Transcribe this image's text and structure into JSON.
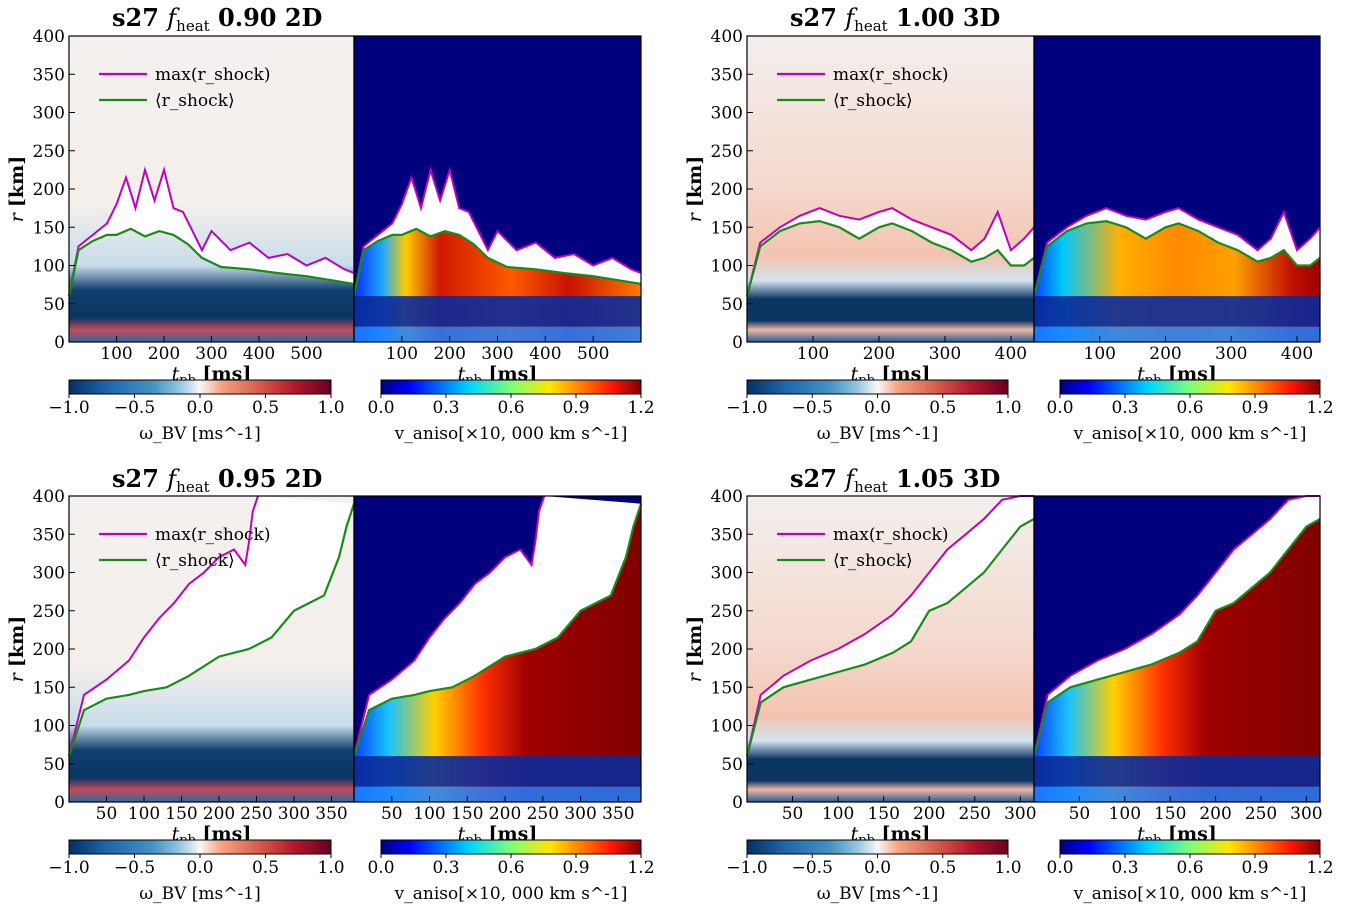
{
  "chart_data": [
    {
      "type": "heatmap",
      "panel": "top-left",
      "title": "s27 f_heat 0.90 2D",
      "title_parts": {
        "model": "s27",
        "f": "f",
        "sub": "heat",
        "rest": "0.90 2D"
      },
      "ylabel": "r [km]",
      "xlabel": "t_pb [ms]",
      "ylim": [
        0,
        400
      ],
      "xlim": [
        0,
        600
      ],
      "yticks": [
        "0",
        "50",
        "100",
        "150",
        "200",
        "250",
        "300",
        "350",
        "400"
      ],
      "xticks": [
        "100",
        "200",
        "300",
        "400",
        "500"
      ],
      "legend": [
        "max(r_shock)",
        "⟨r_shock⟩"
      ],
      "legend_position": "top-left",
      "series": [
        {
          "name": "max(r_shock)",
          "color": "#c000c0",
          "x": [
            0,
            20,
            50,
            80,
            100,
            120,
            140,
            160,
            180,
            200,
            220,
            240,
            260,
            280,
            300,
            340,
            380,
            420,
            460,
            500,
            540,
            580,
            600
          ],
          "y": [
            60,
            125,
            140,
            155,
            180,
            215,
            175,
            225,
            185,
            225,
            175,
            170,
            145,
            120,
            145,
            120,
            130,
            110,
            115,
            100,
            110,
            95,
            90
          ]
        },
        {
          "name": "⟨r_shock⟩",
          "color": "#1a8a1a",
          "x": [
            0,
            20,
            50,
            80,
            100,
            130,
            160,
            190,
            220,
            250,
            280,
            320,
            380,
            440,
            500,
            560,
            600
          ],
          "y": [
            60,
            120,
            132,
            140,
            140,
            148,
            138,
            145,
            140,
            128,
            110,
            98,
            95,
            90,
            86,
            80,
            76
          ]
        }
      ],
      "colorbars": [
        {
          "label": "ω_BV [ms^-1]",
          "colormap": "RdBu_r",
          "ticks": [
            "−1.0",
            "−0.5",
            "0.0",
            "0.5",
            "1.0"
          ]
        },
        {
          "label": "v_aniso[×10, 000 km s^-1]",
          "colormap": "jet",
          "ticks": [
            "0.0",
            "0.3",
            "0.6",
            "0.9",
            "1.2"
          ]
        }
      ]
    },
    {
      "type": "heatmap",
      "panel": "top-right",
      "title": "s27 f_heat 1.00 3D",
      "title_parts": {
        "model": "s27",
        "f": "f",
        "sub": "heat",
        "rest": "1.00 3D"
      },
      "ylabel": "r [km]",
      "xlabel": "t_pb [ms]",
      "ylim": [
        0,
        400
      ],
      "xlim": [
        0,
        435
      ],
      "yticks": [
        "0",
        "50",
        "100",
        "150",
        "200",
        "250",
        "300",
        "350",
        "400"
      ],
      "xticks": [
        "100",
        "200",
        "300",
        "400"
      ],
      "legend": [
        "max(r_shock)",
        "⟨r_shock⟩"
      ],
      "legend_position": "top-left",
      "series": [
        {
          "name": "max(r_shock)",
          "color": "#c000c0",
          "x": [
            0,
            20,
            50,
            80,
            110,
            140,
            170,
            200,
            220,
            250,
            280,
            310,
            340,
            360,
            380,
            400,
            420,
            435
          ],
          "y": [
            60,
            130,
            150,
            165,
            175,
            165,
            160,
            170,
            175,
            160,
            150,
            140,
            120,
            135,
            170,
            120,
            135,
            150
          ]
        },
        {
          "name": "⟨r_shock⟩",
          "color": "#1a8a1a",
          "x": [
            0,
            20,
            50,
            80,
            110,
            140,
            170,
            200,
            220,
            250,
            280,
            310,
            340,
            360,
            380,
            400,
            420,
            435
          ],
          "y": [
            60,
            125,
            145,
            155,
            158,
            150,
            135,
            150,
            155,
            145,
            130,
            120,
            105,
            110,
            120,
            100,
            100,
            110
          ]
        }
      ],
      "colorbars": [
        {
          "label": "ω_BV [ms^-1]",
          "colormap": "RdBu_r",
          "ticks": [
            "−1.0",
            "−0.5",
            "0.0",
            "0.5",
            "1.0"
          ]
        },
        {
          "label": "v_aniso[×10, 000 km s^-1]",
          "colormap": "jet",
          "ticks": [
            "0.0",
            "0.3",
            "0.6",
            "0.9",
            "1.2"
          ]
        }
      ]
    },
    {
      "type": "heatmap",
      "panel": "bottom-left",
      "title": "s27 f_heat 0.95 2D",
      "title_parts": {
        "model": "s27",
        "f": "f",
        "sub": "heat",
        "rest": "0.95 2D"
      },
      "ylabel": "r [km]",
      "xlabel": "t_pb [ms]",
      "ylim": [
        0,
        400
      ],
      "xlim": [
        0,
        380
      ],
      "yticks": [
        "0",
        "50",
        "100",
        "150",
        "200",
        "250",
        "300",
        "350",
        "400"
      ],
      "xticks": [
        "50",
        "100",
        "150",
        "200",
        "250",
        "300",
        "350"
      ],
      "legend": [
        "max(r_shock)",
        "⟨r_shock⟩"
      ],
      "legend_position": "top-left",
      "series": [
        {
          "name": "max(r_shock)",
          "color": "#c000c0",
          "x": [
            0,
            20,
            50,
            80,
            100,
            120,
            140,
            160,
            180,
            200,
            220,
            235,
            240,
            245,
            252
          ],
          "y": [
            60,
            140,
            160,
            185,
            215,
            240,
            260,
            285,
            300,
            320,
            330,
            310,
            340,
            380,
            400
          ]
        },
        {
          "name": "⟨r_shock⟩",
          "color": "#1a8a1a",
          "x": [
            0,
            20,
            50,
            80,
            100,
            130,
            160,
            200,
            240,
            270,
            300,
            320,
            340,
            360,
            370,
            380
          ],
          "y": [
            60,
            120,
            135,
            140,
            145,
            150,
            165,
            190,
            200,
            215,
            250,
            260,
            270,
            320,
            360,
            390
          ]
        }
      ],
      "colorbars": [
        {
          "label": "ω_BV [ms^-1]",
          "colormap": "RdBu_r",
          "ticks": [
            "−1.0",
            "−0.5",
            "0.0",
            "0.5",
            "1.0"
          ]
        },
        {
          "label": "v_aniso[×10, 000 km s^-1]",
          "colormap": "jet",
          "ticks": [
            "0.0",
            "0.3",
            "0.6",
            "0.9",
            "1.2"
          ]
        }
      ]
    },
    {
      "type": "heatmap",
      "panel": "bottom-right",
      "title": "s27 f_heat 1.05 3D",
      "title_parts": {
        "model": "s27",
        "f": "f",
        "sub": "heat",
        "rest": "1.05 3D"
      },
      "ylabel": "r [km]",
      "xlabel": "t_pb [ms]",
      "ylim": [
        0,
        400
      ],
      "xlim": [
        0,
        315
      ],
      "yticks": [
        "0",
        "50",
        "100",
        "150",
        "200",
        "250",
        "300",
        "350",
        "400"
      ],
      "xticks": [
        "50",
        "100",
        "150",
        "200",
        "250",
        "300"
      ],
      "legend": [
        "max(r_shock)",
        "⟨r_shock⟩"
      ],
      "legend_position": "top-left",
      "series": [
        {
          "name": "max(r_shock)",
          "color": "#c000c0",
          "x": [
            0,
            15,
            40,
            70,
            100,
            130,
            160,
            180,
            200,
            220,
            240,
            260,
            280,
            300,
            315
          ],
          "y": [
            60,
            140,
            165,
            185,
            200,
            220,
            245,
            270,
            300,
            330,
            350,
            370,
            395,
            400,
            400
          ]
        },
        {
          "name": "⟨r_shock⟩",
          "color": "#1a8a1a",
          "x": [
            0,
            15,
            40,
            70,
            100,
            130,
            160,
            180,
            200,
            220,
            240,
            260,
            280,
            300,
            315
          ],
          "y": [
            60,
            130,
            150,
            160,
            170,
            180,
            195,
            210,
            250,
            260,
            280,
            300,
            330,
            360,
            370
          ]
        }
      ],
      "colorbars": [
        {
          "label": "ω_BV [ms^-1]",
          "colormap": "RdBu_r",
          "ticks": [
            "−1.0",
            "−0.5",
            "0.0",
            "0.5",
            "1.0"
          ]
        },
        {
          "label": "v_aniso[×10, 000 km s^-1]",
          "colormap": "jet",
          "ticks": [
            "0.0",
            "0.3",
            "0.6",
            "0.9",
            "1.2"
          ]
        }
      ]
    }
  ]
}
